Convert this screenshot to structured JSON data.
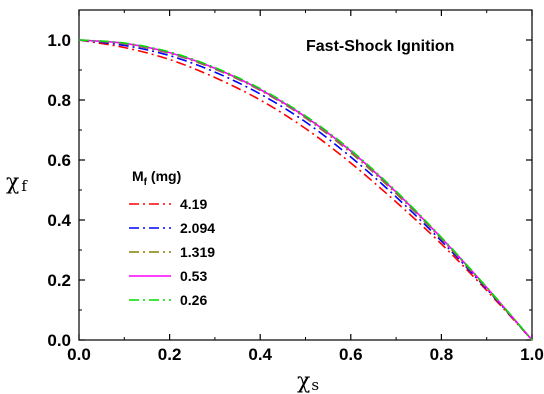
{
  "chart_data": {
    "type": "line",
    "title": "Fast-Shock Ignition",
    "xlabel": "χ",
    "xlabel_sub": "s",
    "ylabel": "χ",
    "ylabel_sub": "f",
    "xlim": [
      0.0,
      1.0
    ],
    "ylim": [
      0.0,
      1.1
    ],
    "xticks": [
      "0.0",
      "0.2",
      "0.4",
      "0.6",
      "0.8",
      "1.0"
    ],
    "yticks": [
      "0.0",
      "0.2",
      "0.4",
      "0.6",
      "0.8",
      "1.0"
    ],
    "legend": {
      "title": "M",
      "title_sub": "f",
      "title_suffix": " (mg)",
      "placement": "center-left"
    },
    "x": [
      0.0,
      0.1,
      0.2,
      0.3,
      0.4,
      0.5,
      0.6,
      0.7,
      0.8,
      0.9,
      1.0
    ],
    "series": [
      {
        "name": "4.19",
        "color": "#ff0000",
        "dash": "dash-dot",
        "values": [
          1.0,
          0.975,
          0.935,
          0.875,
          0.8,
          0.705,
          0.59,
          0.46,
          0.32,
          0.165,
          0.0
        ]
      },
      {
        "name": "2.094",
        "color": "#0000ff",
        "dash": "dash-dot",
        "values": [
          1.0,
          0.982,
          0.948,
          0.893,
          0.82,
          0.727,
          0.61,
          0.477,
          0.33,
          0.17,
          0.0
        ]
      },
      {
        "name": "1.319",
        "color": "#808000",
        "dash": "dash-dot",
        "values": [
          1.0,
          0.987,
          0.955,
          0.903,
          0.832,
          0.74,
          0.624,
          0.488,
          0.337,
          0.173,
          0.0
        ]
      },
      {
        "name": "0.53",
        "color": "#ff00ff",
        "dash": "solid",
        "values": [
          1.0,
          0.989,
          0.958,
          0.906,
          0.835,
          0.744,
          0.63,
          0.493,
          0.34,
          0.175,
          0.0
        ]
      },
      {
        "name": "0.26",
        "color": "#00dd00",
        "dash": "dash-dot",
        "values": [
          1.0,
          0.99,
          0.96,
          0.908,
          0.838,
          0.747,
          0.633,
          0.496,
          0.342,
          0.176,
          0.0
        ]
      }
    ]
  }
}
